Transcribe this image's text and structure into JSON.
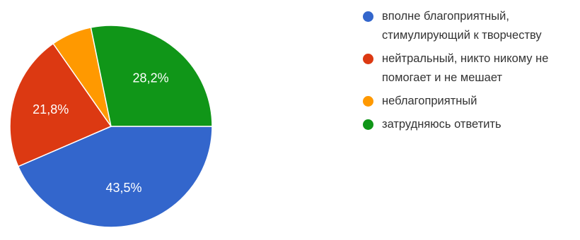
{
  "chart_data": {
    "type": "pie",
    "categories": [
      "вполне благоприятный, стимулирующий к творчеству",
      "нейтральный, никто никому не помогает и не мешает",
      "неблагоприятный",
      "затрудняюсь ответить"
    ],
    "values": [
      43.5,
      21.8,
      6.5,
      28.2
    ],
    "labels": [
      "43,5%",
      "21,8%",
      "",
      "28,2%"
    ],
    "colors": [
      "#3366cc",
      "#dc3912",
      "#ff9900",
      "#109618"
    ],
    "legend_position": "right",
    "legend": [
      {
        "lines": [
          "вполне благоприятный,",
          "стимулирующий к творчеству"
        ],
        "color": "#3366cc"
      },
      {
        "lines": [
          "нейтральный, никто никому не",
          "помогает и не мешает"
        ],
        "color": "#dc3912"
      },
      {
        "lines": [
          "неблагоприятный"
        ],
        "color": "#ff9900"
      },
      {
        "lines": [
          "затрудняюсь ответить"
        ],
        "color": "#109618"
      }
    ]
  }
}
